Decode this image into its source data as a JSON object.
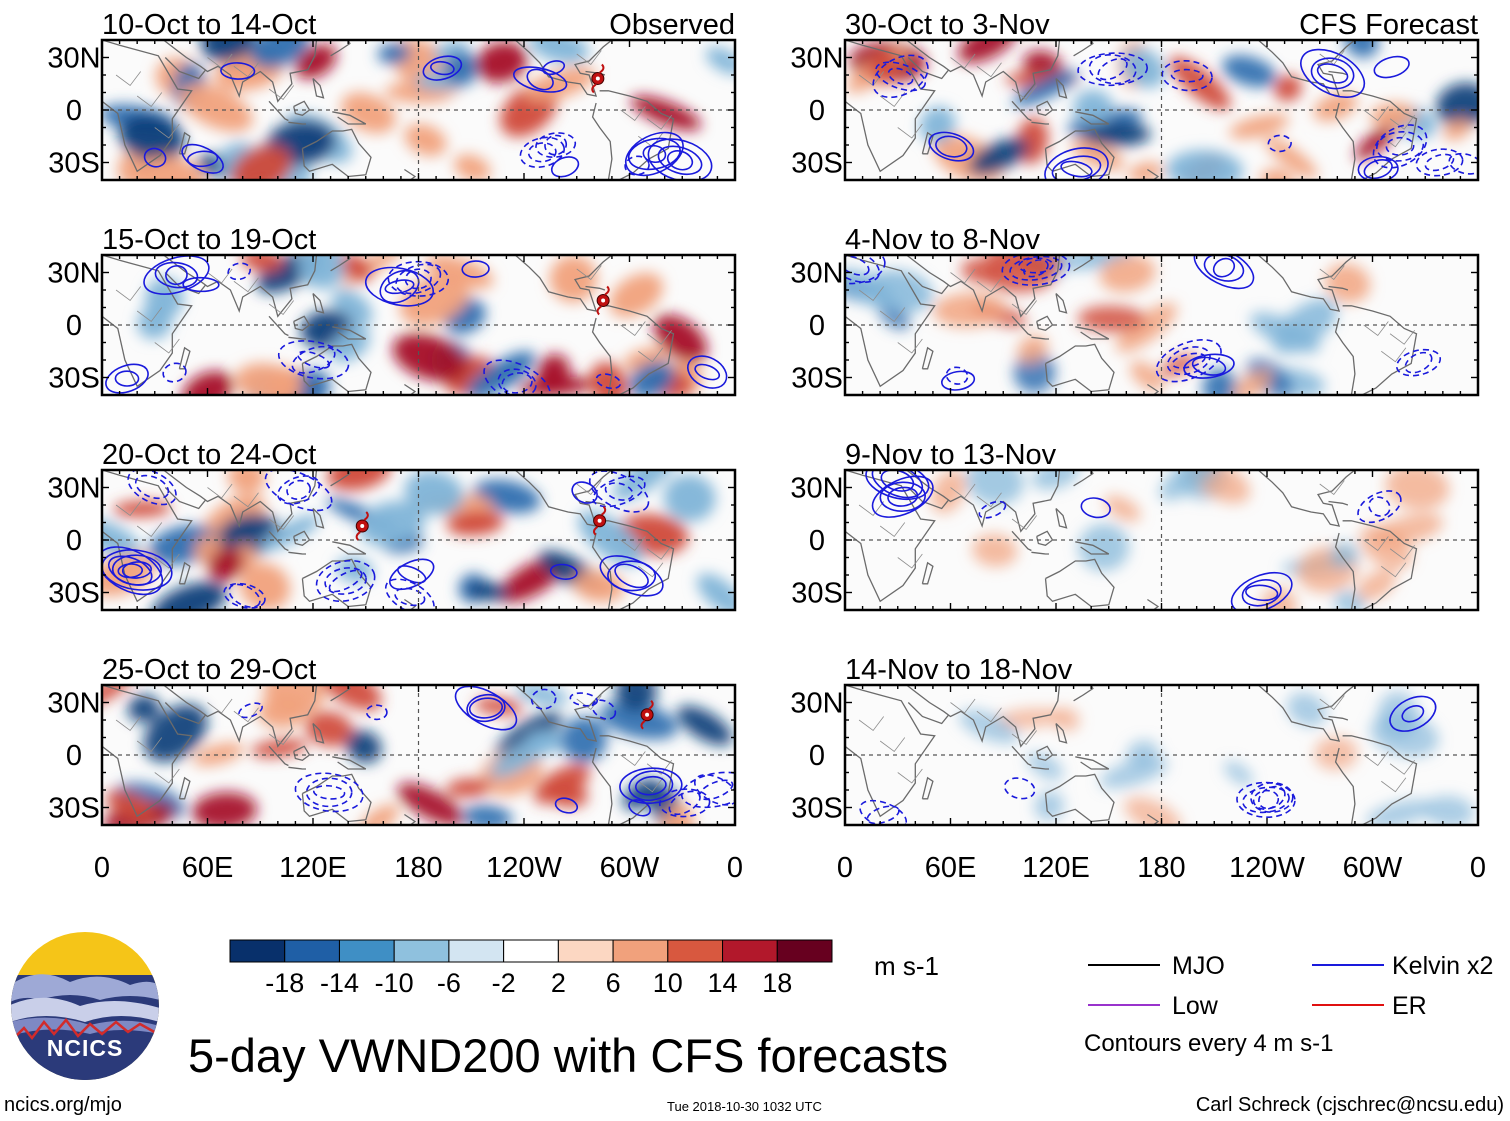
{
  "chart_data": {
    "type": "heatmap",
    "title": "5-day VWND200 with CFS forecasts",
    "variable": "VWND200",
    "units": "m s-1",
    "x_ticks": [
      "0",
      "60E",
      "120E",
      "180",
      "120W",
      "60W",
      "0"
    ],
    "y_ticks": [
      "30N",
      "0",
      "30S"
    ],
    "xlim": [
      0,
      360
    ],
    "ylim": [
      -40,
      40
    ],
    "colorbar": {
      "tick_labels": [
        "-18",
        "-14",
        "-10",
        "-6",
        "-2",
        "2",
        "6",
        "10",
        "14",
        "18"
      ],
      "levels": [
        -18,
        -14,
        -10,
        -6,
        -2,
        2,
        6,
        10,
        14,
        18
      ],
      "colors": [
        "#08306b",
        "#1f5fa6",
        "#3f8fc5",
        "#8fc1de",
        "#d3e5f2",
        "#ffffff",
        "#fcd7c2",
        "#f1a17c",
        "#d8583f",
        "#b2182b",
        "#67001f"
      ]
    },
    "observed_header": "Observed",
    "forecast_header": "CFS Forecast",
    "observed_panels": [
      "10-Oct to 14-Oct",
      "15-Oct to 19-Oct",
      "20-Oct to 24-Oct",
      "25-Oct to 29-Oct"
    ],
    "forecast_panels": [
      "30-Oct to 3-Nov",
      "4-Nov to 8-Nov",
      "9-Nov to 13-Nov",
      "14-Nov to 18-Nov"
    ],
    "legend": [
      {
        "label": "MJO",
        "color": "#000000"
      },
      {
        "label": "Kelvin x2",
        "color": "#1a1adc"
      },
      {
        "label": "Low",
        "color": "#9932cc"
      },
      {
        "label": "ER",
        "color": "#e01010"
      }
    ],
    "contour_note": "Contours every 4 m s-1"
  },
  "logo": {
    "text": "NCICS"
  },
  "footer": {
    "site": "ncics.org/mjo",
    "timestamp": "Tue 2018-10-30 1032 UTC",
    "author": "Carl Schreck (cjschrec@ncsu.edu)"
  }
}
